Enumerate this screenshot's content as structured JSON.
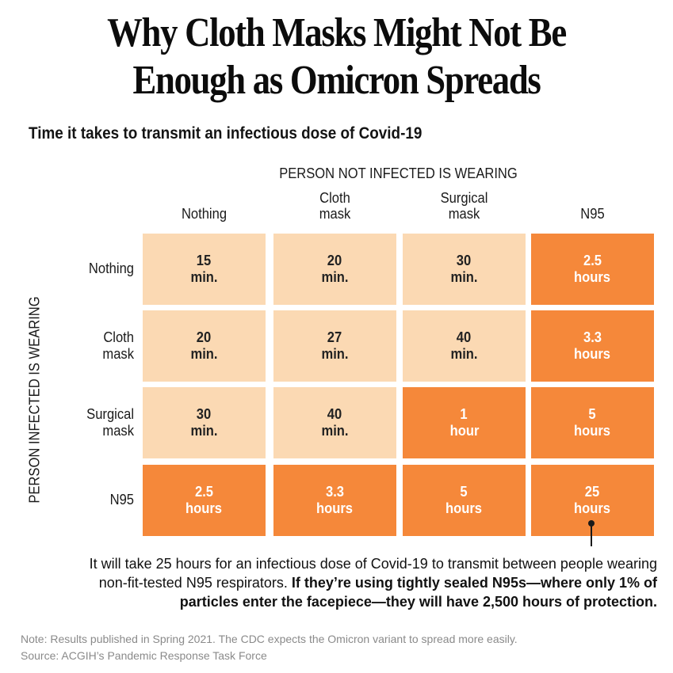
{
  "title": {
    "line1": "Why Cloth Masks Might Not Be",
    "line2": "Enough as Omicron Spreads"
  },
  "subtitle": "Time it takes to transmit an infectious dose of Covid-19",
  "chart_data": {
    "type": "table",
    "column_axis_title": "PERSON NOT INFECTED IS WEARING",
    "row_axis_title": "PERSON INFECTED IS WEARING",
    "columns": [
      {
        "line1": "",
        "line2": "Nothing"
      },
      {
        "line1": "Cloth",
        "line2": "mask"
      },
      {
        "line1": "Surgical",
        "line2": "mask"
      },
      {
        "line1": "",
        "line2": "N95"
      }
    ],
    "rows": [
      {
        "label_line1": "Nothing",
        "label_line2": "",
        "cells": [
          {
            "value": "15",
            "unit": "min.",
            "hours": 0.25
          },
          {
            "value": "20",
            "unit": "min.",
            "hours": 0.333
          },
          {
            "value": "30",
            "unit": "min.",
            "hours": 0.5
          },
          {
            "value": "2.5",
            "unit": "hours",
            "hours": 2.5
          }
        ]
      },
      {
        "label_line1": "Cloth",
        "label_line2": "mask",
        "cells": [
          {
            "value": "20",
            "unit": "min.",
            "hours": 0.333
          },
          {
            "value": "27",
            "unit": "min.",
            "hours": 0.45
          },
          {
            "value": "40",
            "unit": "min.",
            "hours": 0.667
          },
          {
            "value": "3.3",
            "unit": "hours",
            "hours": 3.3
          }
        ]
      },
      {
        "label_line1": "Surgical",
        "label_line2": "mask",
        "cells": [
          {
            "value": "30",
            "unit": "min.",
            "hours": 0.5
          },
          {
            "value": "40",
            "unit": "min.",
            "hours": 0.667
          },
          {
            "value": "1",
            "unit": "hour",
            "hours": 1
          },
          {
            "value": "5",
            "unit": "hours",
            "hours": 5
          }
        ]
      },
      {
        "label_line1": "N95",
        "label_line2": "",
        "cells": [
          {
            "value": "2.5",
            "unit": "hours",
            "hours": 2.5
          },
          {
            "value": "3.3",
            "unit": "hours",
            "hours": 3.3
          },
          {
            "value": "5",
            "unit": "hours",
            "hours": 5
          },
          {
            "value": "25",
            "unit": "hours",
            "hours": 25
          }
        ]
      }
    ],
    "colors": {
      "under_one_hour": "#fbd9b3",
      "one_hour_or_more": "#f5883a"
    }
  },
  "annotation": {
    "line1": "It will take 25 hours for an infectious dose of Covid-19 to transmit between people wearing",
    "line2_plain": "non-fit-tested N95 respirators. ",
    "line2_bold": "If they’re using tightly sealed N95s—where only 1% of",
    "line3_bold": "particles enter the facepiece—they will have 2,500 hours of protection."
  },
  "note": "Note: Results published in Spring 2021. The CDC expects the Omicron variant to spread more easily.",
  "source": "Source: ACGIH’s Pandemic Response Task Force"
}
